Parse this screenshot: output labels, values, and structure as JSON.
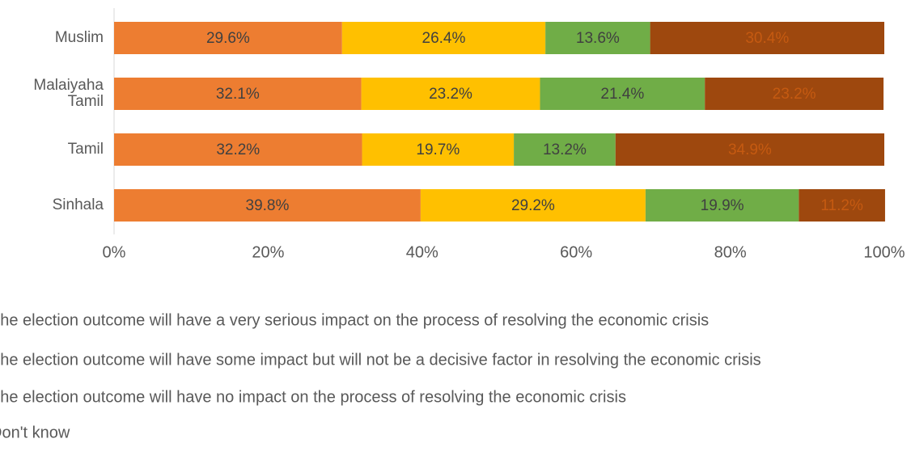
{
  "chart_data": {
    "type": "stacked-bar-horizontal",
    "categories": [
      "Muslim",
      "Malaiyaha Tamil",
      "Tamil",
      "Sinhala"
    ],
    "series": [
      {
        "name": "The election outcome will have a very serious impact on the process of resolving the economic crisis",
        "color": "#ED7D31",
        "label_color": "#404040",
        "values": [
          29.6,
          32.1,
          32.2,
          39.8
        ],
        "value_labels": [
          "29.6%",
          "32.1%",
          "32.2%",
          "39.8%"
        ]
      },
      {
        "name": "The election outcome will have some impact but will not be a decisive factor in resolving the economic crisis",
        "color": "#FFC000",
        "label_color": "#404040",
        "values": [
          26.4,
          23.2,
          19.7,
          29.2
        ],
        "value_labels": [
          "26.4%",
          "23.2%",
          "19.7%",
          "29.2%"
        ]
      },
      {
        "name": "The election outcome will have no impact on the process of resolving the economic crisis",
        "color": "#70AD47",
        "label_color": "#404040",
        "values": [
          13.6,
          21.4,
          13.2,
          19.9
        ],
        "value_labels": [
          "13.6%",
          "21.4%",
          "13.2%",
          "19.9%"
        ]
      },
      {
        "name": "Don't know",
        "color": "#9E480E",
        "label_color": "#C55A11",
        "values": [
          30.4,
          23.2,
          34.9,
          11.2
        ],
        "value_labels": [
          "30.4%",
          "23.2%",
          "34.9%",
          "11.2%"
        ]
      }
    ],
    "xlim": [
      0,
      100
    ],
    "xticks": [
      {
        "value": 0,
        "label": "0%"
      },
      {
        "value": 20,
        "label": "20%"
      },
      {
        "value": 40,
        "label": "40%"
      },
      {
        "value": 60,
        "label": "60%"
      },
      {
        "value": 80,
        "label": "80%"
      },
      {
        "value": 100,
        "label": "100%"
      }
    ]
  }
}
